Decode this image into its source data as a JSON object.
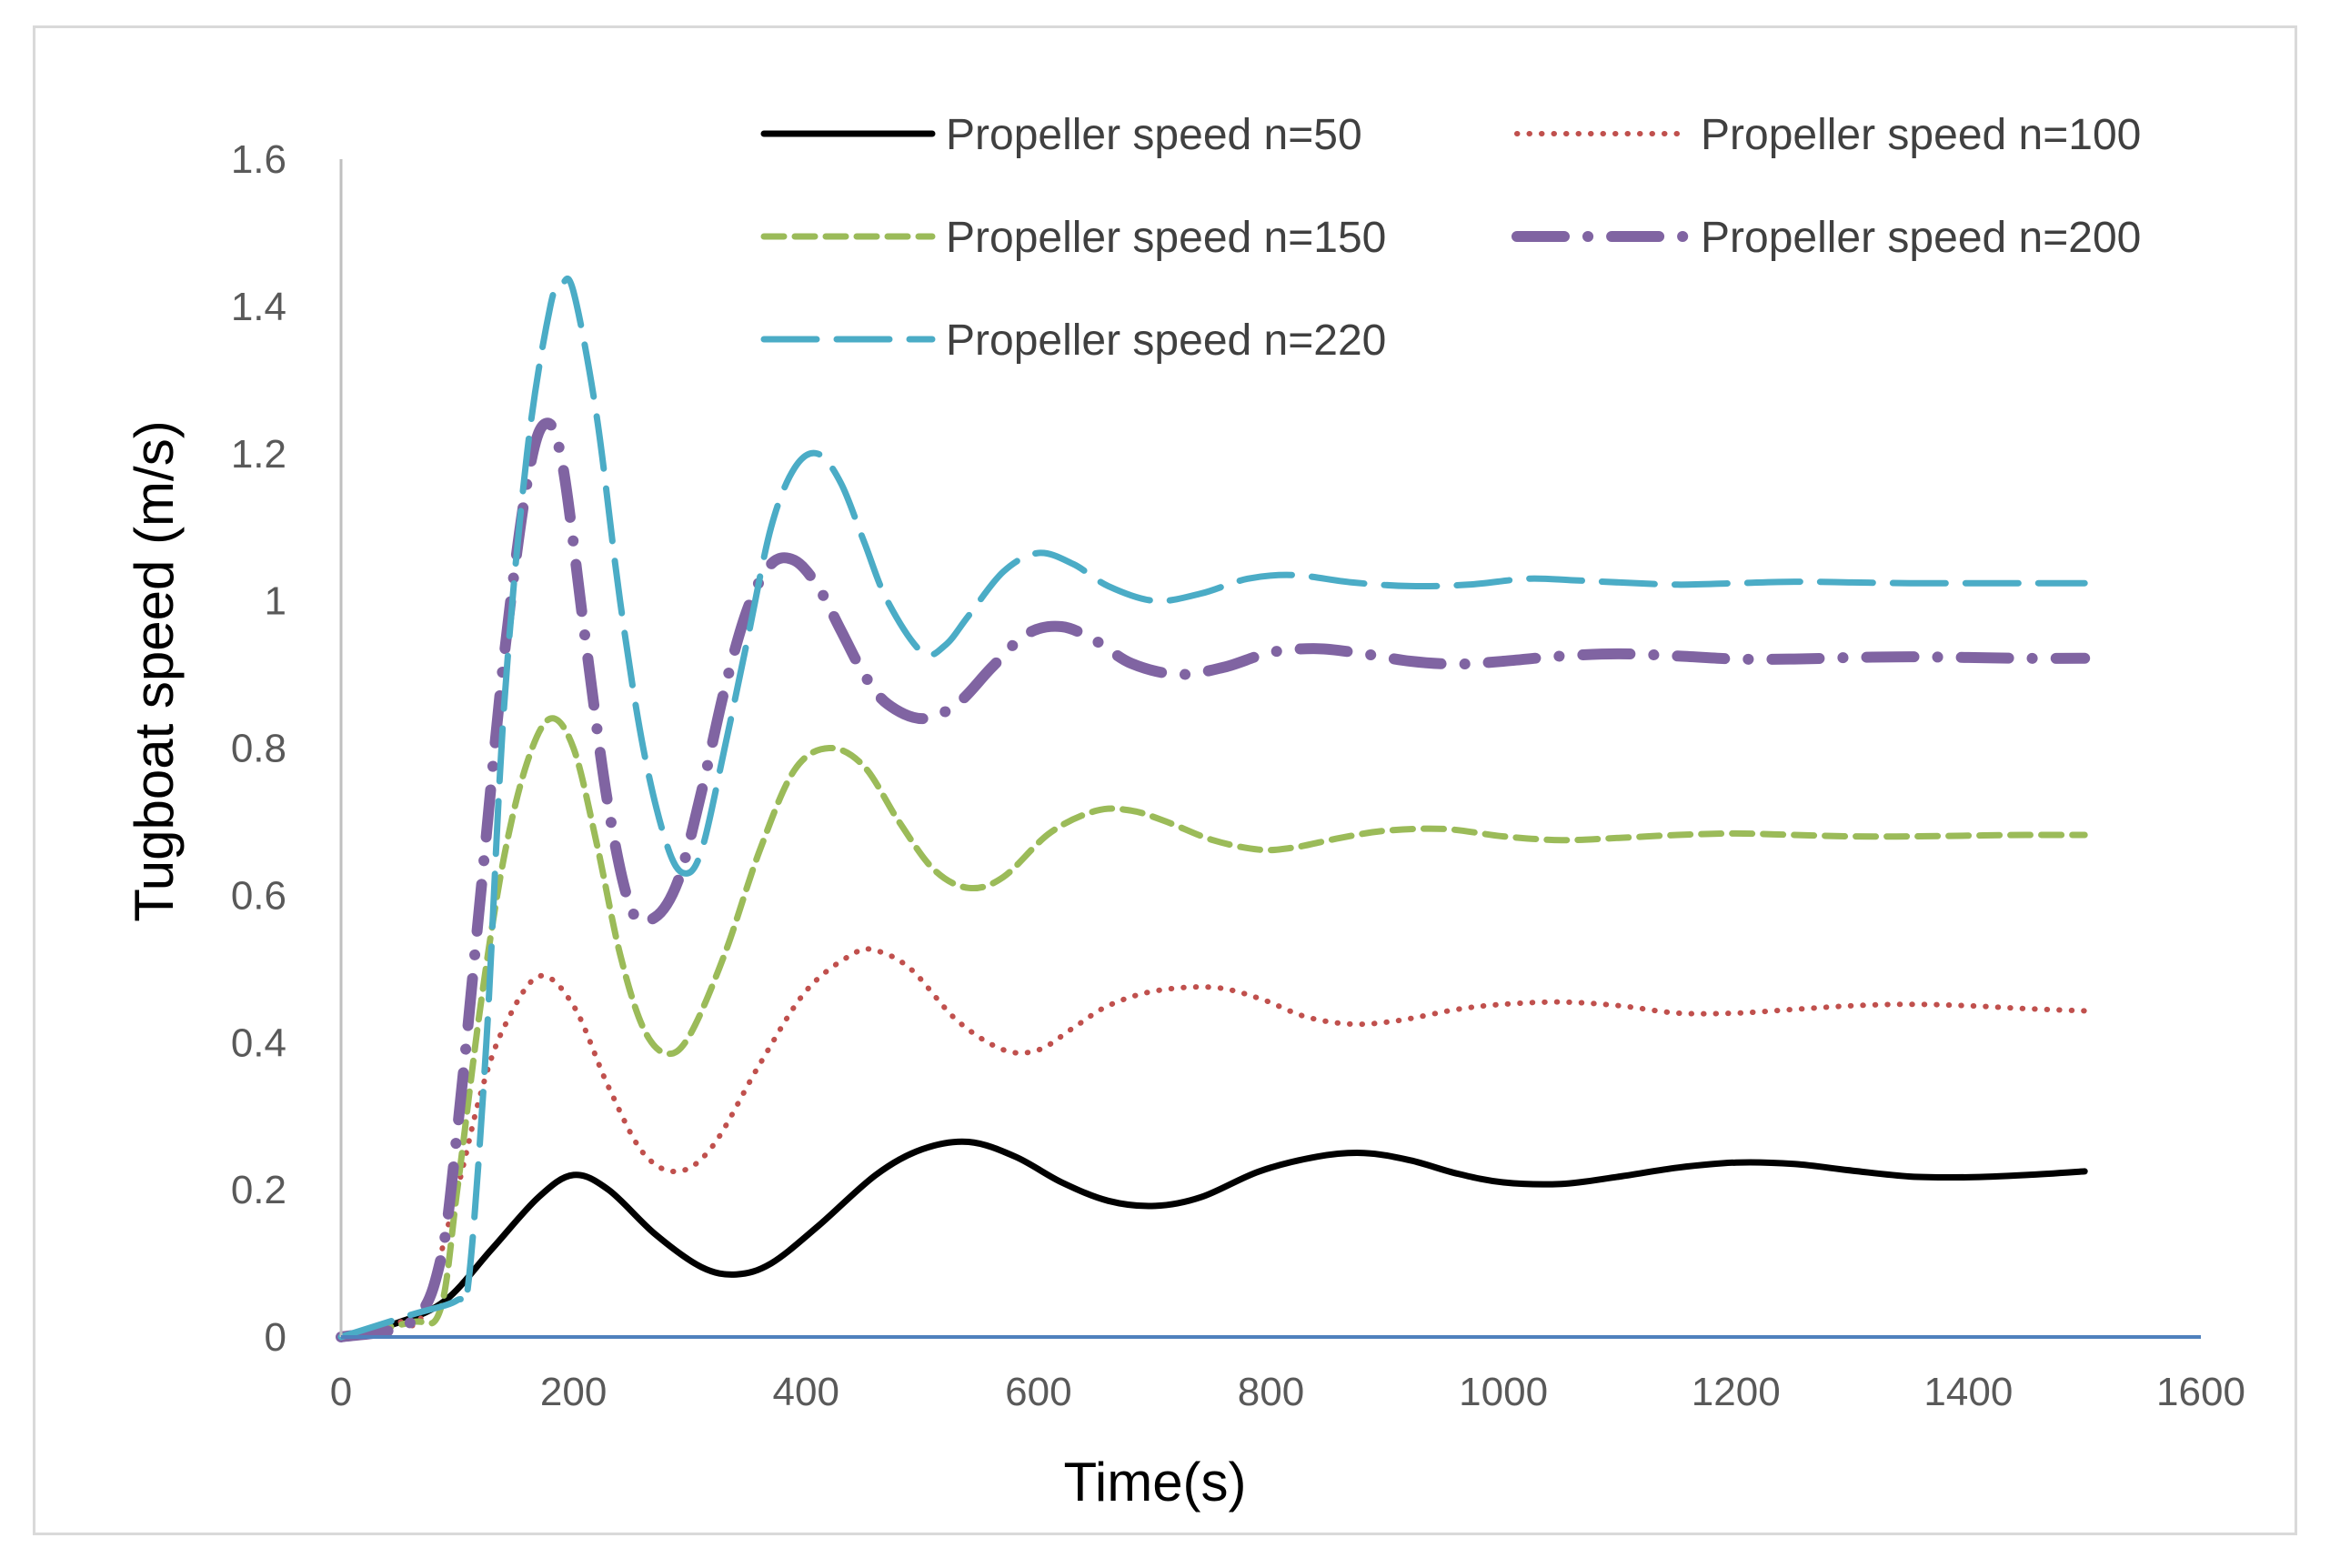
{
  "chart_data": {
    "type": "line",
    "title": "",
    "xlabel": "Time(s)",
    "ylabel": "Tugboat speed (m/s)",
    "xlim": [
      0,
      1600
    ],
    "ylim": [
      0,
      1.6
    ],
    "x_ticks": [
      0,
      200,
      400,
      600,
      800,
      1000,
      1200,
      1400,
      1600
    ],
    "y_ticks": [
      0,
      0.2,
      0.4,
      0.6,
      0.8,
      1.0,
      1.2,
      1.4,
      1.6
    ],
    "x_tick_labels": [
      "0",
      "200",
      "400",
      "600",
      "800",
      "1000",
      "1200",
      "1400",
      "1600"
    ],
    "y_tick_labels": [
      "0",
      "0.2",
      "0.4",
      "0.6",
      "0.8",
      "1",
      "1.2",
      "1.4",
      "1.6"
    ],
    "grid": false,
    "legend_position": "top",
    "series": [
      {
        "name": "Propeller speed n=50",
        "color": "#000000",
        "style": "solid",
        "x": [
          0,
          50,
          90,
          130,
          170,
          200,
          230,
          270,
          310,
          340,
          370,
          410,
          460,
          500,
          540,
          580,
          620,
          660,
          700,
          740,
          790,
          840,
          880,
          920,
          960,
          1000,
          1050,
          1100,
          1150,
          1200,
          1250,
          1300,
          1350,
          1400,
          1450,
          1500
        ],
        "y": [
          0,
          0.02,
          0.05,
          0.12,
          0.19,
          0.22,
          0.2,
          0.14,
          0.095,
          0.085,
          0.1,
          0.15,
          0.22,
          0.255,
          0.265,
          0.245,
          0.21,
          0.185,
          0.178,
          0.19,
          0.225,
          0.245,
          0.25,
          0.24,
          0.222,
          0.21,
          0.208,
          0.218,
          0.23,
          0.237,
          0.235,
          0.226,
          0.218,
          0.217,
          0.22,
          0.225
        ]
      },
      {
        "name": "Propeller speed n=100",
        "color": "#c0504d",
        "style": "dotted",
        "x": [
          0,
          50,
          70,
          100,
          120,
          140,
          170,
          200,
          230,
          260,
          290,
          320,
          360,
          400,
          440,
          460,
          490,
          530,
          570,
          600,
          630,
          660,
          700,
          750,
          790,
          830,
          870,
          910,
          960,
          1000,
          1050,
          1100,
          1150,
          1200,
          1250,
          1300,
          1350,
          1400,
          1450,
          1500
        ],
        "y": [
          0,
          0.02,
          0.03,
          0.2,
          0.33,
          0.42,
          0.49,
          0.45,
          0.34,
          0.25,
          0.225,
          0.26,
          0.37,
          0.47,
          0.52,
          0.525,
          0.5,
          0.43,
          0.39,
          0.39,
          0.42,
          0.45,
          0.47,
          0.475,
          0.46,
          0.435,
          0.425,
          0.43,
          0.445,
          0.452,
          0.455,
          0.45,
          0.44,
          0.44,
          0.445,
          0.45,
          0.452,
          0.45,
          0.446,
          0.443
        ]
      },
      {
        "name": "Propeller speed n=150",
        "color": "#9bbb59",
        "style": "dashed",
        "x": [
          0,
          60,
          85,
          100,
          120,
          140,
          160,
          180,
          200,
          220,
          240,
          260,
          280,
          300,
          330,
          360,
          390,
          420,
          450,
          480,
          510,
          540,
          570,
          610,
          650,
          680,
          710,
          750,
          790,
          820,
          860,
          900,
          950,
          1000,
          1050,
          1100,
          1150,
          1200,
          1250,
          1300,
          1350,
          1400,
          1450,
          1500
        ],
        "y": [
          0,
          0.02,
          0.035,
          0.2,
          0.45,
          0.65,
          0.78,
          0.84,
          0.8,
          0.67,
          0.52,
          0.42,
          0.385,
          0.41,
          0.52,
          0.66,
          0.77,
          0.8,
          0.775,
          0.7,
          0.635,
          0.61,
          0.625,
          0.685,
          0.715,
          0.715,
          0.7,
          0.675,
          0.662,
          0.665,
          0.678,
          0.688,
          0.69,
          0.68,
          0.675,
          0.678,
          0.682,
          0.684,
          0.682,
          0.68,
          0.68,
          0.681,
          0.682,
          0.682
        ]
      },
      {
        "name": "Propeller speed n=200",
        "color": "#8064a2",
        "style": "dashdot",
        "x": [
          0,
          60,
          85,
          100,
          120,
          140,
          160,
          175,
          190,
          210,
          230,
          250,
          270,
          290,
          310,
          330,
          350,
          370,
          390,
          410,
          430,
          450,
          470,
          500,
          530,
          560,
          590,
          620,
          650,
          680,
          720,
          760,
          800,
          840,
          880,
          920,
          960,
          1000,
          1050,
          1100,
          1150,
          1200,
          1250,
          1300,
          1350,
          1400,
          1450,
          1500
        ],
        "y": [
          0,
          0.02,
          0.1,
          0.28,
          0.6,
          0.92,
          1.16,
          1.24,
          1.19,
          0.95,
          0.72,
          0.58,
          0.57,
          0.62,
          0.74,
          0.88,
          0.99,
          1.05,
          1.055,
          1.02,
          0.96,
          0.9,
          0.86,
          0.84,
          0.86,
          0.91,
          0.955,
          0.965,
          0.945,
          0.915,
          0.9,
          0.91,
          0.93,
          0.935,
          0.928,
          0.918,
          0.914,
          0.918,
          0.925,
          0.928,
          0.925,
          0.921,
          0.921,
          0.923,
          0.924,
          0.923,
          0.922,
          0.922
        ]
      },
      {
        "name": "Propeller speed n=220",
        "color": "#4bacc6",
        "style": "longdash",
        "x": [
          0,
          60,
          100,
          110,
          125,
          140,
          160,
          180,
          190,
          200,
          220,
          240,
          260,
          280,
          295,
          310,
          330,
          350,
          370,
          390,
          410,
          430,
          450,
          470,
          500,
          520,
          540,
          570,
          600,
          630,
          660,
          700,
          740,
          780,
          820,
          870,
          920,
          970,
          1020,
          1060,
          1100,
          1150,
          1200,
          1250,
          1300,
          1350,
          1400,
          1450,
          1500
        ],
        "y": [
          0,
          0.03,
          0.05,
          0.08,
          0.4,
          0.85,
          1.2,
          1.4,
          1.43,
          1.42,
          1.25,
          1.0,
          0.8,
          0.67,
          0.63,
          0.66,
          0.8,
          0.95,
          1.1,
          1.18,
          1.2,
          1.16,
          1.08,
          1.0,
          0.93,
          0.94,
          0.98,
          1.04,
          1.065,
          1.05,
          1.02,
          1.0,
          1.01,
          1.03,
          1.035,
          1.025,
          1.02,
          1.022,
          1.03,
          1.028,
          1.025,
          1.022,
          1.024,
          1.026,
          1.025,
          1.024,
          1.024,
          1.024,
          1.024
        ]
      }
    ]
  }
}
